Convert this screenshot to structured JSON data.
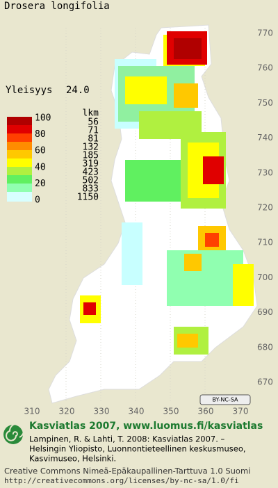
{
  "header": {
    "title": "Drosera longifolia"
  },
  "stat": {
    "label": "Yleisyys",
    "value": "24.0"
  },
  "legend": {
    "scale": [
      "100",
      "80",
      "60",
      "40",
      "20",
      "0"
    ],
    "count_title": "lkm",
    "counts": [
      "56",
      "71",
      "81",
      "132",
      "185",
      "319",
      "423",
      "502",
      "833",
      "1150"
    ]
  },
  "axes": {
    "y": [
      "770",
      "760",
      "750",
      "740",
      "730",
      "720",
      "710",
      "700",
      "690",
      "680",
      "670"
    ],
    "x": [
      "310",
      "320",
      "330",
      "340",
      "350",
      "360",
      "370"
    ]
  },
  "license_badge": "BY-NC-SA",
  "footer": {
    "site": "Kasviatlas 2007, www.luomus.fi/kasviatlas",
    "citation": [
      "Lampinen, R. & Lahti, T. 2008: Kasviatlas 2007. –",
      "Helsingin Yliopisto, Luonnontieteellinen keskusmuseo,",
      "Kasvimuseo, Helsinki."
    ],
    "license": [
      "Creative Commons Nimeä-Epäkaupallinen-Tarttuva 1.0 Suomi",
      "http://creativecommons.org/licenses/by-nc-sa/1.0/fi"
    ]
  }
}
